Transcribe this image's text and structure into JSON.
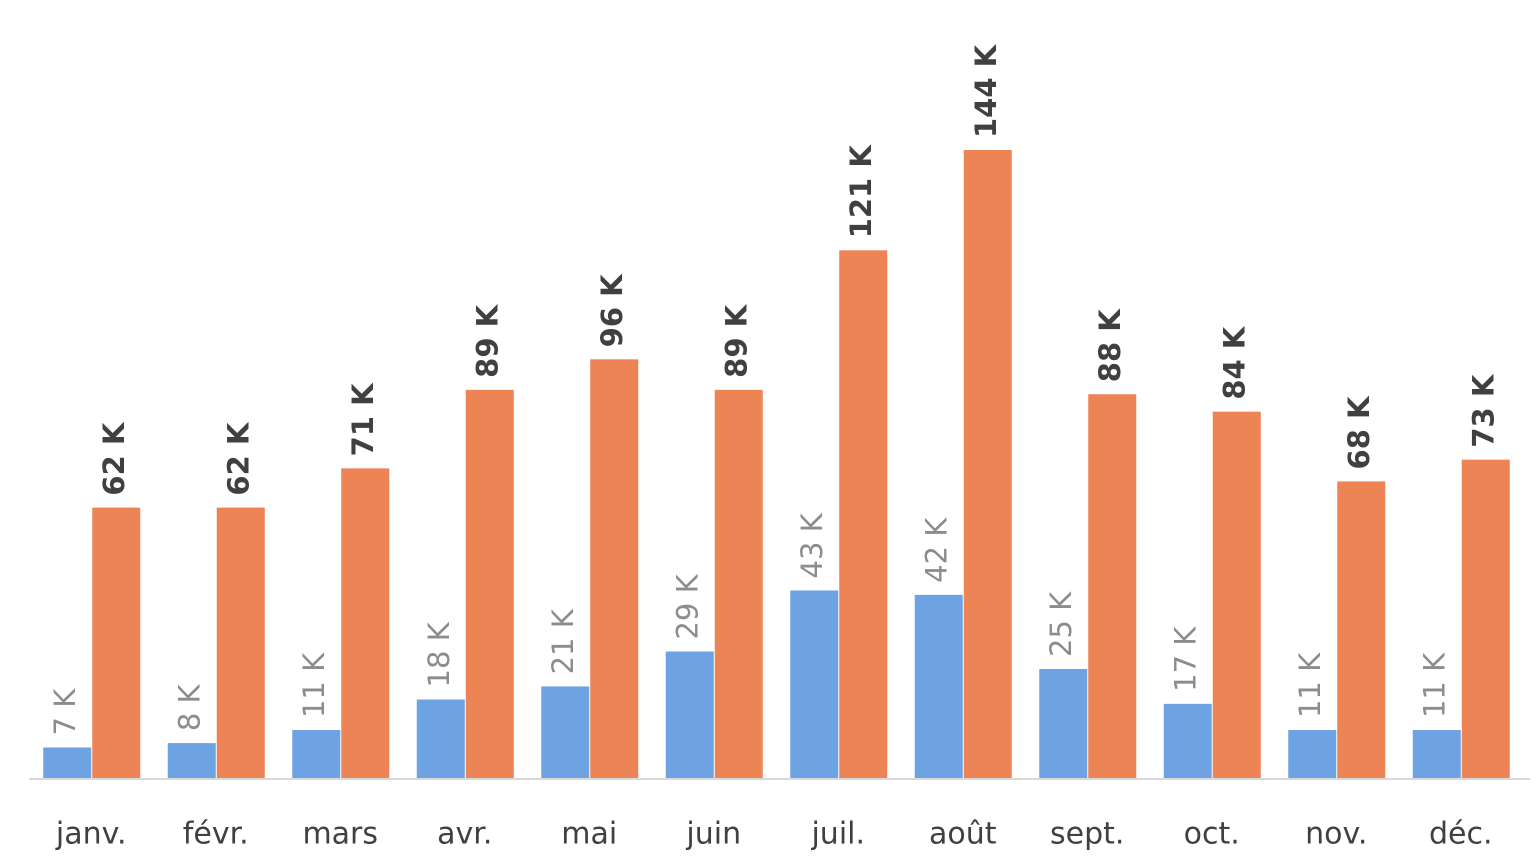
{
  "chart_data": {
    "type": "bar",
    "categories": [
      "janv.",
      "févr.",
      "mars",
      "avr.",
      "mai",
      "juin",
      "juil.",
      "août",
      "sept.",
      "oct.",
      "nov.",
      "déc."
    ],
    "series": [
      {
        "color": "#6ea3e3",
        "values": [
          7,
          8,
          11,
          18,
          21,
          29,
          43,
          42,
          25,
          17,
          11,
          11
        ],
        "value_labels": [
          "7 K",
          "8 K",
          "11 K",
          "18 K",
          "21 K",
          "29 K",
          "43 K",
          "42 K",
          "25 K",
          "17 K",
          "11 K",
          "11 K"
        ]
      },
      {
        "color": "#ec8455",
        "values": [
          62,
          62,
          71,
          89,
          96,
          89,
          121,
          144,
          88,
          84,
          68,
          73
        ],
        "value_labels": [
          "62 K",
          "62 K",
          "71 K",
          "89 K",
          "96 K",
          "89 K",
          "121 K",
          "144 K",
          "88 K",
          "84 K",
          "68 K",
          "73 K"
        ]
      }
    ]
  }
}
